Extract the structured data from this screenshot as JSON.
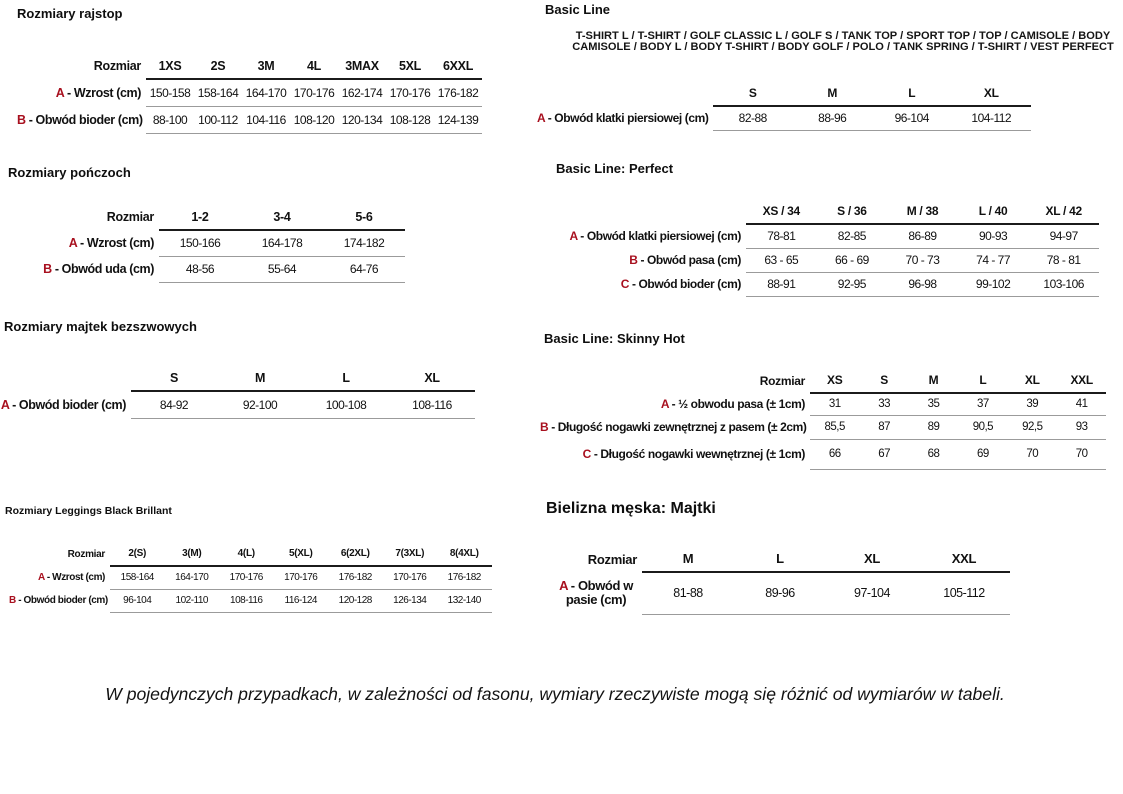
{
  "accent_color": "#a8101f",
  "tables": [
    {
      "id": "rajstopy",
      "title": "Rozmiary rajstop",
      "corner": "Rozmiar",
      "columns": [
        "1XS",
        "2S",
        "3M",
        "4L",
        "3MAX",
        "5XL",
        "6XXL"
      ],
      "rows": [
        {
          "letter": "A",
          "label": "- Wzrost (cm)",
          "values": [
            "150-158",
            "158-164",
            "164-170",
            "170-176",
            "162-174",
            "170-176",
            "176-182"
          ]
        },
        {
          "letter": "B",
          "label": "- Obwód bioder (cm)",
          "values": [
            "88-100",
            "100-112",
            "104-116",
            "108-120",
            "120-134",
            "108-128",
            "124-139"
          ]
        }
      ]
    },
    {
      "id": "ponczochy",
      "title": "Rozmiary pończoch",
      "corner": "Rozmiar",
      "columns": [
        "1-2",
        "3-4",
        "5-6"
      ],
      "rows": [
        {
          "letter": "A",
          "label": "- Wzrost (cm)",
          "values": [
            "150-166",
            "164-178",
            "174-182"
          ]
        },
        {
          "letter": "B",
          "label": "- Obwód uda (cm)",
          "values": [
            "48-56",
            "55-64",
            "64-76"
          ]
        }
      ]
    },
    {
      "id": "majtki-bezszwowe",
      "title": "Rozmiary majtek bezszwowych",
      "corner": "",
      "columns": [
        "S",
        "M",
        "L",
        "XL"
      ],
      "rows": [
        {
          "letter": "A",
          "label": "- Obwód bioder (cm)",
          "values": [
            "84-92",
            "92-100",
            "100-108",
            "108-116"
          ]
        }
      ]
    },
    {
      "id": "leggings",
      "title": "Rozmiary Leggings Black Brillant",
      "corner": "Rozmiar",
      "columns": [
        "2(S)",
        "3(M)",
        "4(L)",
        "5(XL)",
        "6(2XL)",
        "7(3XL)",
        "8(4XL)"
      ],
      "rows": [
        {
          "letter": "A",
          "label": "- Wzrost (cm)",
          "values": [
            "158-164",
            "164-170",
            "170-176",
            "170-176",
            "176-182",
            "170-176",
            "176-182"
          ]
        },
        {
          "letter": "B",
          "label": "- Obwód bioder (cm)",
          "values": [
            "96-104",
            "102-110",
            "108-116",
            "116-124",
            "120-128",
            "126-134",
            "132-140"
          ]
        }
      ]
    },
    {
      "id": "basic",
      "title": "Basic Line",
      "subtitle_lines": [
        "T-SHIRT L / T-SHIRT / GOLF CLASSIC L / GOLF S / TANK TOP / SPORT TOP / TOP / CAMISOLE / BODY",
        "CAMISOLE / BODY L / BODY T-SHIRT / BODY GOLF / POLO / TANK SPRING / T-SHIRT / VEST PERFECT"
      ],
      "corner": "",
      "columns": [
        "S",
        "M",
        "L",
        "XL"
      ],
      "rows": [
        {
          "letter": "A",
          "label": "- Obwód klatki piersiowej (cm)",
          "values": [
            "82-88",
            "88-96",
            "96-104",
            "104-112"
          ]
        }
      ]
    },
    {
      "id": "perfect",
      "title": "Basic Line: Perfect",
      "corner": "",
      "columns": [
        "XS / 34",
        "S / 36",
        "M / 38",
        "L / 40",
        "XL / 42"
      ],
      "rows": [
        {
          "letter": "A",
          "label": "- Obwód klatki piersiowej (cm)",
          "values": [
            "78-81",
            "82-85",
            "86-89",
            "90-93",
            "94-97"
          ]
        },
        {
          "letter": "B",
          "label": "- Obwód pasa (cm)",
          "values": [
            "63 - 65",
            "66 - 69",
            "70 - 73",
            "74 - 77",
            "78 - 81"
          ]
        },
        {
          "letter": "C",
          "label": "- Obwód bioder (cm)",
          "values": [
            "88-91",
            "92-95",
            "96-98",
            "99-102",
            "103-106"
          ]
        }
      ]
    },
    {
      "id": "skinny",
      "title": "Basic Line: Skinny Hot",
      "corner": "Rozmiar",
      "columns": [
        "XS",
        "S",
        "M",
        "L",
        "XL",
        "XXL"
      ],
      "rows": [
        {
          "letter": "A",
          "label": "- ½ obwodu pasa (± 1cm)",
          "values": [
            "31",
            "33",
            "35",
            "37",
            "39",
            "41"
          ]
        },
        {
          "letter": "B",
          "label": "- Długość nogawki zewnętrznej z pasem (± 2cm)",
          "values": [
            "85,5",
            "87",
            "89",
            "90,5",
            "92,5",
            "93"
          ]
        },
        {
          "letter": "C",
          "label": "- Długość nogawki wewnętrznej (± 1cm)",
          "values": [
            "66",
            "67",
            "68",
            "69",
            "70",
            "70"
          ]
        }
      ]
    },
    {
      "id": "majtki-meskie",
      "title": "Bielizna męska: Majtki",
      "corner": "Rozmiar",
      "columns": [
        "M",
        "L",
        "XL",
        "XXL"
      ],
      "rows": [
        {
          "letter": "A",
          "label": "- Obwód w pasie (cm)",
          "values": [
            "81-88",
            "89-96",
            "97-104",
            "105-112"
          ]
        }
      ]
    }
  ],
  "footnote": "W pojedynczych przypadkach, w zależności od fasonu, wymiary rzeczywiste mogą się różnić od wymiarów w tabeli."
}
